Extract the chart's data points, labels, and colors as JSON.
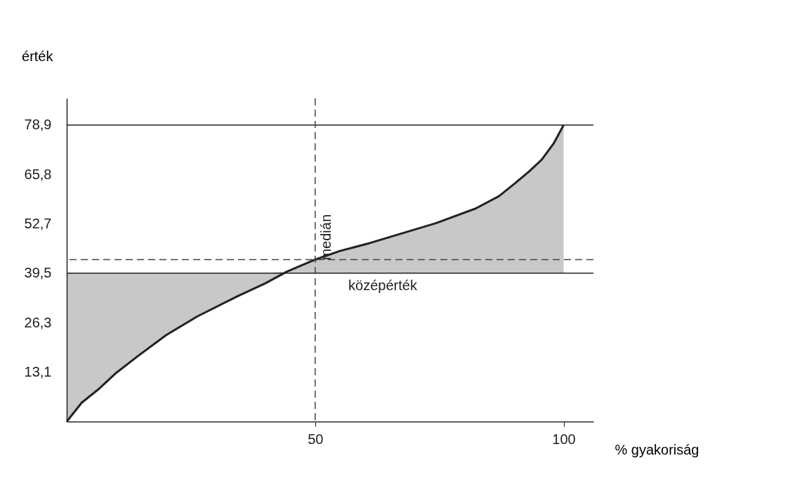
{
  "chart_data": {
    "type": "line",
    "xlabel": "% gyakoriság",
    "ylabel": "érték",
    "x": [
      0,
      3,
      6.3,
      10,
      14.3,
      20,
      26.3,
      34.3,
      40,
      44.3,
      50,
      55,
      61,
      67,
      74.3,
      82.3,
      87,
      90.3,
      93,
      95.6,
      98,
      100
    ],
    "series": [
      {
        "color": "#222222",
        "values": [
          0,
          5,
          8.5,
          13,
          17.4,
          23,
          28,
          33.3,
          36.8,
          39.9,
          43.1,
          45.4,
          47.5,
          49.9,
          52.8,
          56.7,
          60,
          63.5,
          66.5,
          69.7,
          74,
          78.9
        ],
        "lower": [
          0,
          5,
          8.5,
          13,
          17.4,
          23,
          28,
          33.3,
          36.8,
          39.5,
          39.5,
          39.5,
          39.5,
          39.5,
          39.5,
          39.5,
          39.5,
          39.5,
          39.5,
          39.5,
          39.5,
          39.5
        ],
        "upper": [
          39.5,
          39.5,
          39.5,
          39.5,
          39.5,
          39.5,
          39.5,
          39.5,
          39.5,
          39.9,
          43.1,
          45.4,
          47.5,
          49.9,
          52.8,
          56.7,
          60,
          63.5,
          66.5,
          69.7,
          74,
          78.9
        ]
      }
    ],
    "xlim": [
      0,
      106
    ],
    "xticks": [
      50,
      100
    ],
    "ylim": [
      0,
      86
    ],
    "yticks": [
      {
        "value": 13.1,
        "label": "13,1"
      },
      {
        "value": 26.3,
        "label": "26,3"
      },
      {
        "value": 39.5,
        "label": "39,5"
      },
      {
        "value": 52.7,
        "label": "52,7"
      },
      {
        "value": 65.8,
        "label": "65,8"
      },
      {
        "value": 78.9,
        "label": "78,9"
      }
    ],
    "ref_lines": [
      {
        "axis": "y",
        "value": 78.9,
        "label": null,
        "color": "#222222",
        "line_style": "solid"
      },
      {
        "axis": "y",
        "value": 39.5,
        "label": "középérték",
        "color": "#222222",
        "line_style": "solid"
      },
      {
        "axis": "y",
        "value": 43.1,
        "label": null,
        "color": "#444444",
        "line_style": "dashed"
      },
      {
        "axis": "x",
        "value": 50,
        "label": "medián",
        "color": "#444444",
        "line_style": "dashed"
      }
    ],
    "grid": false,
    "marker": "none",
    "line_style": "solid"
  }
}
